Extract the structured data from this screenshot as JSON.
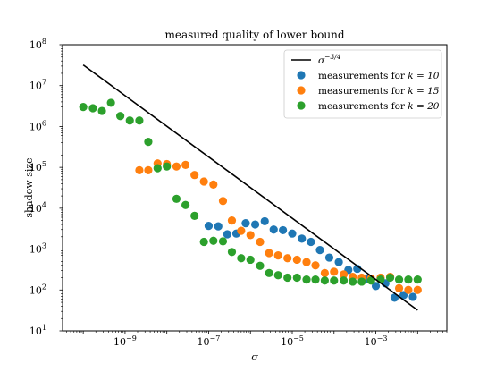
{
  "chart_data": {
    "type": "scatter",
    "title": "measured quality of lower bound",
    "xlabel": "σ",
    "ylabel": "shadow size",
    "xscale": "log",
    "yscale": "log",
    "xlim": [
      3.2e-11,
      0.05
    ],
    "ylim": [
      10,
      100000000
    ],
    "x_tick_values": [
      1e-09,
      1e-07,
      1e-05,
      0.001
    ],
    "x_tick_labels": [
      "10",
      "10",
      "10",
      "10"
    ],
    "x_tick_exponents": [
      "−9",
      "−7",
      "−5",
      "−3"
    ],
    "y_tick_values": [
      10,
      100,
      1000,
      10000,
      100000,
      1000000,
      10000000,
      100000000
    ],
    "y_tick_labels": [
      "10",
      "10",
      "10",
      "10",
      "10",
      "10",
      "10",
      "10"
    ],
    "y_tick_exponents": [
      "1",
      "2",
      "3",
      "4",
      "5",
      "6",
      "7",
      "8"
    ],
    "grid": false,
    "legend_position": "top-right",
    "line": {
      "name": "σ",
      "name_exponent": "−3/4",
      "color": "#000000",
      "x": [
        1e-10,
        0.01
      ],
      "y": [
        32000000,
        32
      ]
    },
    "series": [
      {
        "name": "measurements for",
        "name_math": "k = 10",
        "color": "#1f77b4",
        "x": [
          1e-07,
          1.7e-07,
          2.8e-07,
          4.6e-07,
          7.7e-07,
          1.3e-06,
          2.2e-06,
          3.6e-06,
          6e-06,
          1e-05,
          1.7e-05,
          2.8e-05,
          4.6e-05,
          7.7e-05,
          0.00013,
          0.00022,
          0.00036,
          0.0006,
          0.001,
          0.0017,
          0.0028,
          0.0046,
          0.0077
        ],
        "y": [
          3700,
          3600,
          2300,
          2400,
          4300,
          4000,
          4800,
          3000,
          2900,
          2400,
          1800,
          1500,
          950,
          620,
          480,
          310,
          330,
          190,
          125,
          145,
          65,
          75,
          68
        ]
      },
      {
        "name": "measurements for",
        "name_math": "k = 15",
        "color": "#ff7f0e",
        "x": [
          2.2e-09,
          3.6e-09,
          6e-09,
          1e-08,
          1.7e-08,
          2.8e-08,
          4.6e-08,
          7.7e-08,
          1.3e-07,
          2.2e-07,
          3.6e-07,
          6e-07,
          1e-06,
          1.7e-06,
          2.8e-06,
          4.6e-06,
          7.7e-06,
          1.3e-05,
          2.2e-05,
          3.6e-05,
          6e-05,
          0.0001,
          0.00017,
          0.00028,
          0.00046,
          0.00077,
          0.0013,
          0.0022,
          0.0036,
          0.006,
          0.01
        ],
        "y": [
          85000,
          85000,
          125000,
          120000,
          105000,
          115000,
          65000,
          45000,
          38000,
          15000,
          5000,
          2800,
          2200,
          1500,
          800,
          700,
          600,
          550,
          480,
          400,
          260,
          280,
          240,
          210,
          200,
          190,
          200,
          210,
          110,
          100,
          100
        ]
      },
      {
        "name": "measurements for",
        "name_math": "k = 20",
        "color": "#2ca02c",
        "x": [
          1e-10,
          1.7e-10,
          2.8e-10,
          4.6e-10,
          7.7e-10,
          1.3e-09,
          2.2e-09,
          3.6e-09,
          6e-09,
          1e-08,
          1.7e-08,
          2.8e-08,
          4.6e-08,
          7.7e-08,
          1.3e-07,
          2.2e-07,
          3.6e-07,
          6e-07,
          1e-06,
          1.7e-06,
          2.8e-06,
          4.6e-06,
          7.7e-06,
          1.3e-05,
          2.2e-05,
          3.6e-05,
          6e-05,
          0.0001,
          0.00017,
          0.00028,
          0.00046,
          0.00077,
          0.0013,
          0.0022,
          0.0036,
          0.006,
          0.01
        ],
        "y": [
          3000000,
          2800000,
          2400000,
          3800000,
          1800000,
          1400000,
          1400000,
          420000,
          95000,
          105000,
          17000,
          12000,
          6500,
          1500,
          1600,
          1550,
          850,
          600,
          550,
          390,
          260,
          230,
          200,
          200,
          180,
          180,
          170,
          170,
          170,
          160,
          160,
          170,
          180,
          200,
          180,
          180,
          180
        ]
      }
    ]
  }
}
